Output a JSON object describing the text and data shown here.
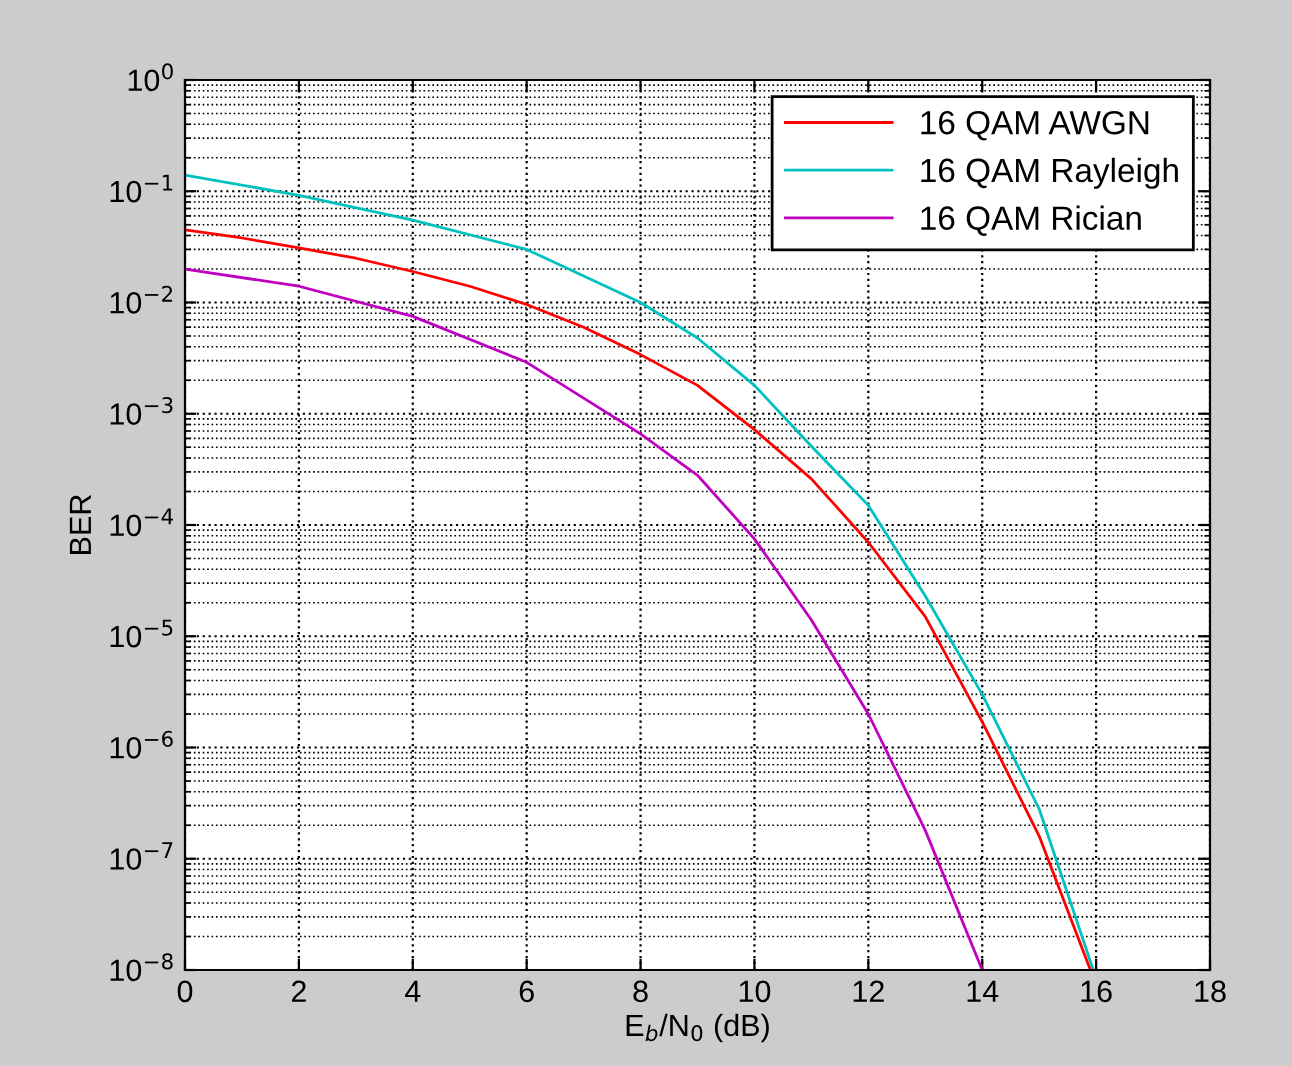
{
  "chart_data": {
    "type": "line",
    "xlabel": "E$_{b}$/N$_{0}$ (dB)",
    "ylabel": "BER",
    "log": "y",
    "grid": true,
    "legend": "top right",
    "line_style": "solid",
    "marker": "none",
    "xlim": [
      0,
      18
    ],
    "xticks": [
      0,
      2,
      4,
      6,
      8,
      10,
      12,
      14,
      16,
      18
    ],
    "ylim": [
      1e-08,
      1
    ],
    "yticks": [
      {
        "value": 1e-08,
        "label": "10$^{−8}$"
      },
      {
        "value": 1e-07,
        "label": "10$^{−7}$"
      },
      {
        "value": 1e-06,
        "label": "10$^{−6}$"
      },
      {
        "value": 1e-05,
        "label": "10$^{−5}$"
      },
      {
        "value": 0.0001,
        "label": "10$^{−4}$"
      },
      {
        "value": 0.001,
        "label": "10$^{−3}$"
      },
      {
        "value": 0.01,
        "label": "10$^{−2}$"
      },
      {
        "value": 0.1,
        "label": "10$^{−1}$"
      },
      {
        "value": 1,
        "label": "10$^{0}$"
      }
    ],
    "series": [
      {
        "name": "16 QAM AWGN",
        "color": "#ff0000",
        "x": [
          0,
          1,
          2,
          3,
          4,
          5,
          6,
          7,
          8,
          9,
          10,
          11,
          12,
          13,
          14,
          15,
          15.9
        ],
        "values": [
          0.045,
          0.038,
          0.031,
          0.025,
          0.019,
          0.014,
          0.0096,
          0.006,
          0.0034,
          0.0018,
          0.00072,
          0.00026,
          7e-05,
          1.5e-05,
          1.7e-06,
          1.6e-07,
          1e-08
        ]
      },
      {
        "name": "16 QAM Rayleigh",
        "color": "#00c0c0",
        "x": [
          0,
          2,
          4,
          6,
          8,
          9,
          10,
          11,
          12,
          13,
          14,
          15,
          15.95
        ],
        "values": [
          0.14,
          0.092,
          0.055,
          0.03,
          0.01,
          0.0048,
          0.0018,
          0.00051,
          0.00015,
          2.3e-05,
          3e-06,
          2.8e-07,
          1e-08
        ]
      },
      {
        "name": "16 QAM Rician",
        "color": "#c000c0",
        "x": [
          0,
          2,
          4,
          6,
          8,
          9,
          10,
          11,
          12,
          13,
          14
        ],
        "values": [
          0.02,
          0.014,
          0.0075,
          0.0029,
          0.00066,
          0.00028,
          7.5e-05,
          1.4e-05,
          2e-06,
          1.8e-07,
          1e-08
        ]
      }
    ]
  }
}
